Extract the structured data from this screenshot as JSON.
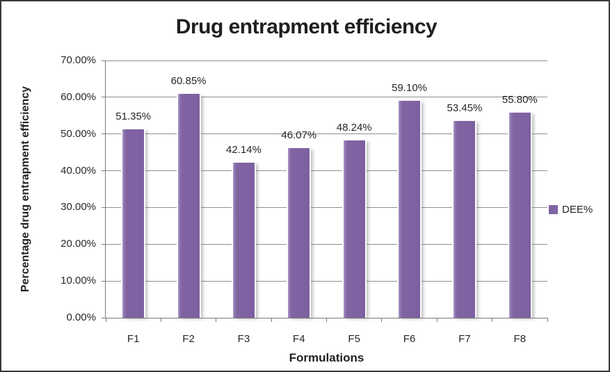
{
  "chart_data": {
    "type": "bar",
    "title": "Drug entrapment efficiency",
    "xlabel": "Formulations",
    "ylabel": "Percentage drug entrapment efficiency",
    "categories": [
      "F1",
      "F2",
      "F3",
      "F4",
      "F5",
      "F6",
      "F7",
      "F8"
    ],
    "series": [
      {
        "name": "DEE%",
        "values": [
          51.35,
          60.85,
          42.14,
          46.07,
          48.24,
          59.1,
          53.45,
          55.8
        ],
        "data_labels": [
          "51.35%",
          "60.85%",
          "42.14%",
          "46.07%",
          "48.24%",
          "59.10%",
          "53.45%",
          "55.80%"
        ]
      }
    ],
    "ylim": [
      0,
      70
    ],
    "ytick_interval": 10,
    "ytick_labels": [
      "0.00%",
      "10.00%",
      "20.00%",
      "30.00%",
      "40.00%",
      "50.00%",
      "60.00%",
      "70.00%"
    ],
    "grid": true,
    "legend_position": "right",
    "legend_label": "DEE%"
  },
  "colors": {
    "bar_fill": "#8064A2",
    "gridline": "#8f8f8f",
    "axis": "#7a7a7a",
    "text": "#262626",
    "frame_border": "#3a3a3a",
    "background": "#ffffff"
  }
}
